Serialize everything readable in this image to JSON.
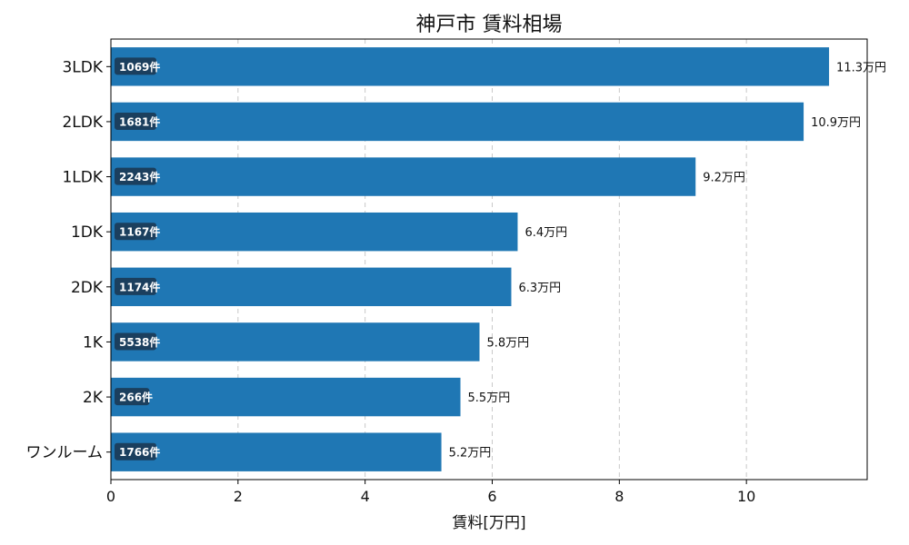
{
  "chart_data": {
    "type": "bar",
    "orientation": "horizontal",
    "title": "神戸市 賃料相場",
    "xlabel": "賃料[万円]",
    "ylabel": "",
    "xlim": [
      0,
      11.9
    ],
    "xticks": [
      0,
      2,
      4,
      6,
      8,
      10
    ],
    "grid": "x, dashed",
    "bar_color": "#1f77b4",
    "badge_color": "#1b3f5e",
    "categories": [
      "3LDK",
      "2LDK",
      "1LDK",
      "1DK",
      "2DK",
      "1K",
      "2K",
      "ワンルーム"
    ],
    "values": [
      11.3,
      10.9,
      9.2,
      6.4,
      6.3,
      5.8,
      5.5,
      5.2
    ],
    "value_labels": [
      "11.3万円",
      "10.9万円",
      "9.2万円",
      "6.4万円",
      "6.3万円",
      "5.8万円",
      "5.5万円",
      "5.2万円"
    ],
    "counts": [
      "1069件",
      "1681件",
      "2243件",
      "1167件",
      "1174件",
      "5538件",
      "266件",
      "1766件"
    ]
  }
}
